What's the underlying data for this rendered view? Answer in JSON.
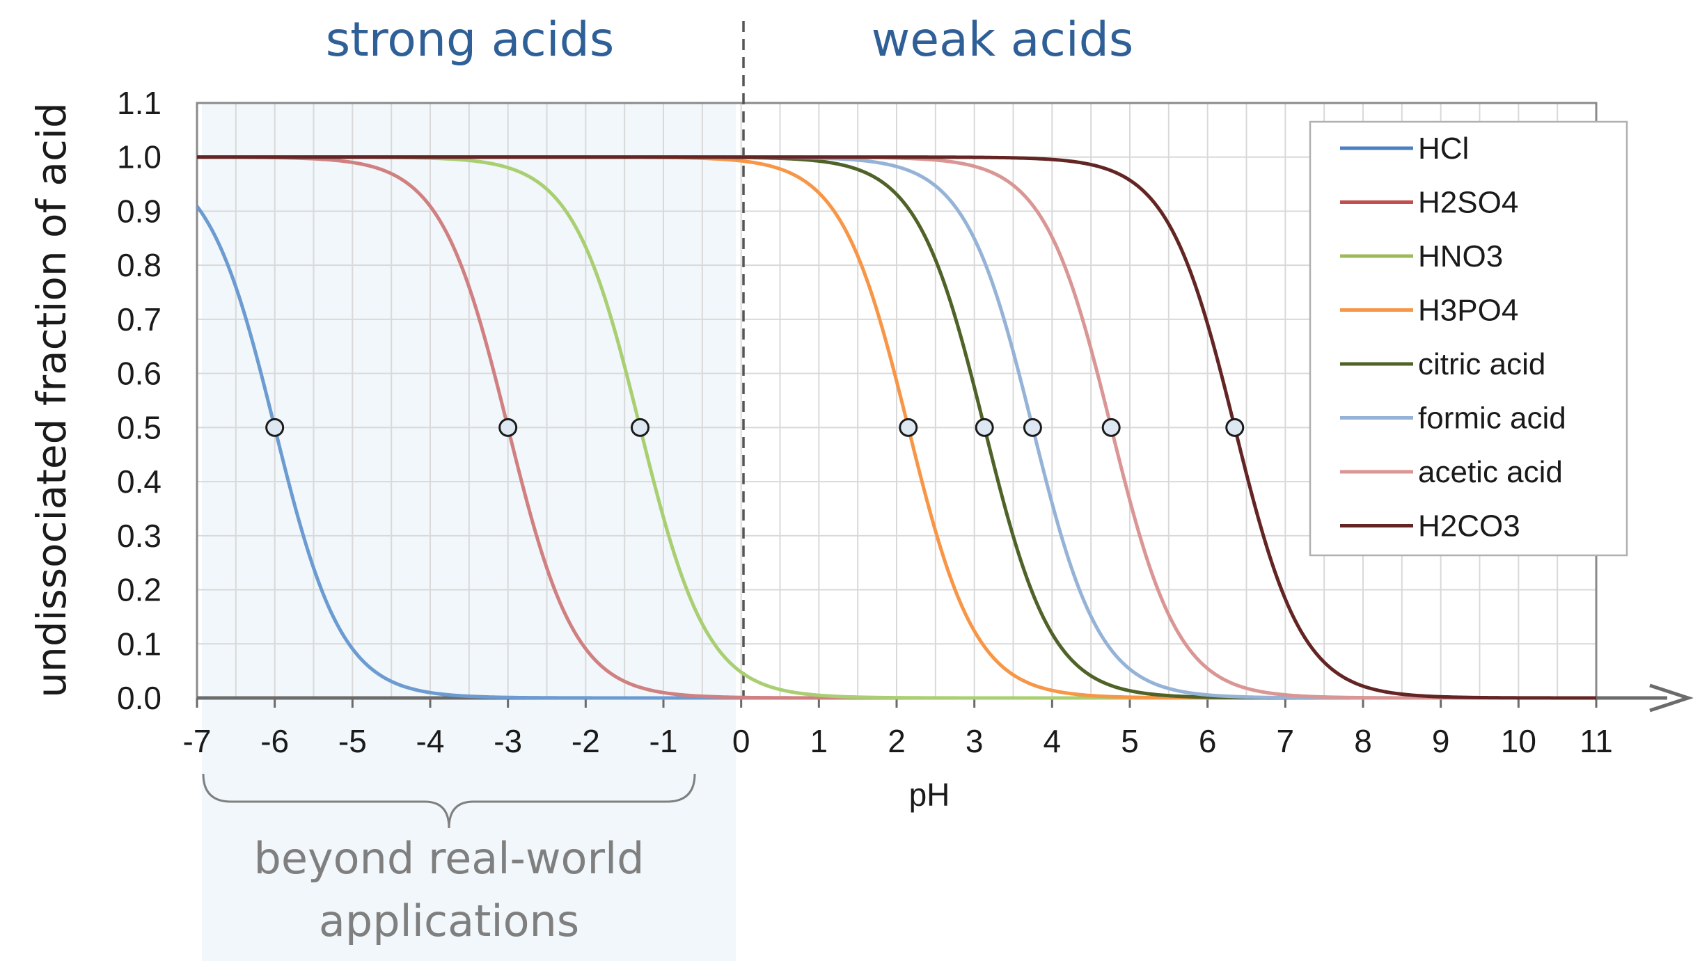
{
  "chart_data": {
    "type": "line",
    "ylabel": "undissociated fraction of acid",
    "xlabel": "pH",
    "xlim": [
      -7,
      11
    ],
    "ylim": [
      0,
      1.1
    ],
    "xticks": [
      "-7",
      "-6",
      "-5",
      "-4",
      "-3",
      "-2",
      "-1",
      "0",
      "1",
      "2",
      "3",
      "4",
      "5",
      "6",
      "7",
      "8",
      "9",
      "10",
      "11"
    ],
    "yticks": [
      "0.0",
      "0.1",
      "0.2",
      "0.3",
      "0.4",
      "0.5",
      "0.6",
      "0.7",
      "0.8",
      "0.9",
      "1.0",
      "1.1"
    ],
    "grid": true,
    "legend_position": "top-right",
    "region_labels": {
      "strong": "strong acids",
      "weak": "weak acids",
      "beyond_line1": "beyond real-world",
      "beyond_line2": "applications"
    },
    "divider_x": 0,
    "shaded_range": [
      -7,
      0
    ],
    "series": [
      {
        "name": "HCl",
        "pKa": -6.0,
        "color": "#6b9bd1",
        "legend_color": "#4a7fc1"
      },
      {
        "name": "H2SO4",
        "pKa": -3.0,
        "color": "#d08080",
        "legend_color": "#c0504d"
      },
      {
        "name": "HNO3",
        "pKa": -1.3,
        "color": "#a9cf72",
        "legend_color": "#9bbb59"
      },
      {
        "name": "H3PO4",
        "pKa": 2.15,
        "color": "#f79646",
        "legend_color": "#f79646"
      },
      {
        "name": "citric acid",
        "pKa": 3.13,
        "color": "#4f6228",
        "legend_color": "#4f6228"
      },
      {
        "name": "formic acid",
        "pKa": 3.75,
        "color": "#95b3d7",
        "legend_color": "#95b3d7"
      },
      {
        "name": "acetic acid",
        "pKa": 4.76,
        "color": "#d99694",
        "legend_color": "#d99694"
      },
      {
        "name": "H2CO3",
        "pKa": 6.35,
        "color": "#632523",
        "legend_color": "#632523"
      }
    ]
  }
}
